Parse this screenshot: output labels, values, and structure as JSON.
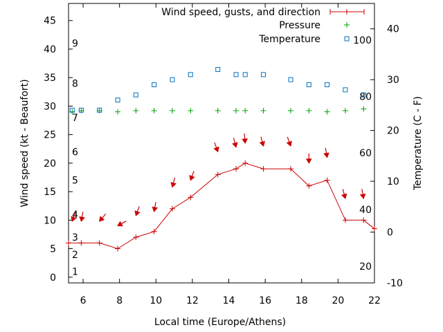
{
  "chart_data": {
    "type": "line",
    "xlabel": "Local time (Europe/Athens)",
    "ylabel_left": "Wind speed (kt - Beaufort)",
    "ylabel_right": "Temperature (C - F)",
    "xlim": [
      5.2,
      22
    ],
    "ylim_left": [
      -1,
      48
    ],
    "ylim_right": [
      -10,
      45
    ],
    "x_ticks": [
      6,
      8,
      10,
      12,
      14,
      16,
      18,
      20,
      22
    ],
    "y_ticks_left": [
      0,
      5,
      10,
      15,
      20,
      25,
      30,
      35,
      40,
      45
    ],
    "y_ticks_right": [
      -10,
      0,
      10,
      20,
      30,
      40
    ],
    "beaufort_labels": [
      {
        "label": "1",
        "kt": 1
      },
      {
        "label": "2",
        "kt": 4
      },
      {
        "label": "3",
        "kt": 7
      },
      {
        "label": "4",
        "kt": 11
      },
      {
        "label": "5",
        "kt": 17
      },
      {
        "label": "6",
        "kt": 22
      },
      {
        "label": "7",
        "kt": 28
      },
      {
        "label": "8",
        "kt": 34
      },
      {
        "label": "9",
        "kt": 41
      }
    ],
    "fahrenheit_labels": [
      {
        "label": "20",
        "celsius": -6.7
      },
      {
        "label": "40",
        "celsius": 4.4
      },
      {
        "label": "60",
        "celsius": 15.6
      },
      {
        "label": "80",
        "celsius": 26.7
      },
      {
        "label": "100",
        "celsius": 37.8
      }
    ],
    "legend_position": "top-right",
    "series": [
      {
        "name": "Wind speed, gusts, and direction",
        "color": "#cc0000",
        "axis": "left",
        "x": [
          5.2,
          5.9,
          6.9,
          7.9,
          8.9,
          9.9,
          10.9,
          11.9,
          13.4,
          14.4,
          14.9,
          15.9,
          17.4,
          18.4,
          19.4,
          20.4,
          21.4,
          22
        ],
        "y": [
          6,
          6,
          6,
          5,
          7,
          8,
          12,
          14,
          18,
          19,
          20,
          19,
          19,
          16,
          17,
          10,
          10,
          8.5
        ]
      },
      {
        "name": "Pressure",
        "color": "#00a000",
        "axis": "left",
        "x": [
          5.4,
          5.9,
          6.9,
          7.9,
          8.9,
          9.9,
          10.9,
          11.9,
          13.4,
          14.4,
          14.9,
          15.9,
          17.4,
          18.4,
          19.4,
          20.4,
          21.4
        ],
        "y": [
          29,
          29.2,
          29.2,
          29,
          29.2,
          29.2,
          29.2,
          29.2,
          29.2,
          29.2,
          29.2,
          29.2,
          29.2,
          29.2,
          29,
          29.2,
          29.5
        ]
      },
      {
        "name": "Temperature",
        "color": "#0070c0",
        "axis": "right",
        "x": [
          5.4,
          5.9,
          6.9,
          7.9,
          8.9,
          9.9,
          10.9,
          11.9,
          13.4,
          14.4,
          14.9,
          15.9,
          17.4,
          18.4,
          19.4,
          20.4,
          21.4
        ],
        "y": [
          24,
          24,
          24,
          26,
          27,
          29,
          30,
          31,
          32,
          31,
          31,
          31,
          30,
          29,
          29,
          28,
          27
        ]
      }
    ],
    "wind_arrows": [
      {
        "x": 5.4,
        "kt": 9.8,
        "dir_deg": 200
      },
      {
        "x": 5.9,
        "kt": 9.8,
        "dir_deg": 190
      },
      {
        "x": 6.9,
        "kt": 9.8,
        "dir_deg": 220
      },
      {
        "x": 7.9,
        "kt": 9.0,
        "dir_deg": 240
      },
      {
        "x": 8.9,
        "kt": 10.8,
        "dir_deg": 200
      },
      {
        "x": 9.9,
        "kt": 11.5,
        "dir_deg": 190
      },
      {
        "x": 10.9,
        "kt": 15.8,
        "dir_deg": 195
      },
      {
        "x": 11.9,
        "kt": 17.0,
        "dir_deg": 200
      },
      {
        "x": 13.4,
        "kt": 22.0,
        "dir_deg": 160
      },
      {
        "x": 14.4,
        "kt": 22.8,
        "dir_deg": 165
      },
      {
        "x": 14.9,
        "kt": 23.5,
        "dir_deg": 175
      },
      {
        "x": 15.9,
        "kt": 23.0,
        "dir_deg": 165
      },
      {
        "x": 17.4,
        "kt": 23.0,
        "dir_deg": 160
      },
      {
        "x": 18.4,
        "kt": 20.0,
        "dir_deg": 180
      },
      {
        "x": 19.4,
        "kt": 21.0,
        "dir_deg": 170
      },
      {
        "x": 20.4,
        "kt": 13.8,
        "dir_deg": 165
      },
      {
        "x": 21.4,
        "kt": 13.8,
        "dir_deg": 170
      }
    ]
  }
}
